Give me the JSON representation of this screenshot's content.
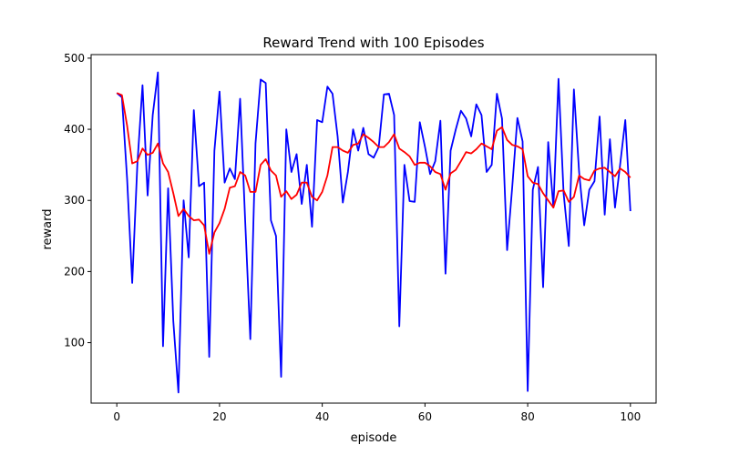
{
  "chart_data": {
    "type": "line",
    "title": "Reward Trend with 100 Episodes",
    "xlabel": "episode",
    "ylabel": "reward",
    "xlim": [
      -5,
      105
    ],
    "ylim": [
      15,
      505
    ],
    "xticks": [
      0,
      20,
      40,
      60,
      80,
      100
    ],
    "yticks": [
      100,
      200,
      300,
      400,
      500
    ],
    "grid": false,
    "series": [
      {
        "color": "#0000ff",
        "x": [
          0,
          1,
          2,
          3,
          4,
          5,
          6,
          7,
          8,
          9,
          10,
          11,
          12,
          13,
          14,
          15,
          16,
          17,
          18,
          19,
          20,
          21,
          22,
          23,
          24,
          25,
          26,
          27,
          28,
          29,
          30,
          31,
          32,
          33,
          34,
          35,
          36,
          37,
          38,
          39,
          40,
          41,
          42,
          43,
          44,
          45,
          46,
          47,
          48,
          49,
          50,
          51,
          52,
          53,
          54,
          55,
          56,
          57,
          58,
          59,
          60,
          61,
          62,
          63,
          64,
          65,
          66,
          67,
          68,
          69,
          70,
          71,
          72,
          73,
          74,
          75,
          76,
          77,
          78,
          79,
          80,
          81,
          82,
          83,
          84,
          85,
          86,
          87,
          88,
          89,
          90,
          91,
          92,
          93,
          94,
          95,
          96,
          97,
          98,
          99,
          100
        ],
        "values": [
          451,
          445,
          330,
          184,
          350,
          462,
          307,
          420,
          480,
          95,
          317,
          130,
          30,
          300,
          220,
          427,
          320,
          325,
          80,
          370,
          453,
          325,
          345,
          330,
          443,
          270,
          105,
          380,
          470,
          465,
          272,
          250,
          52,
          400,
          340,
          365,
          295,
          350,
          263,
          413,
          410,
          460,
          450,
          390,
          297,
          340,
          400,
          370,
          402,
          365,
          360,
          375,
          449,
          450,
          420,
          123,
          350,
          299,
          298,
          410,
          375,
          337,
          355,
          412,
          197,
          370,
          400,
          426,
          415,
          390,
          435,
          420,
          340,
          350,
          450,
          415,
          230,
          320,
          416,
          383,
          32,
          315,
          347,
          178,
          382,
          290,
          471,
          310,
          236,
          456,
          340,
          265,
          315,
          327,
          418,
          280,
          386,
          290,
          350,
          413,
          285
        ]
      },
      {
        "color": "#ff0000",
        "x": [
          0,
          1,
          2,
          3,
          4,
          5,
          6,
          7,
          8,
          9,
          10,
          11,
          12,
          13,
          14,
          15,
          16,
          17,
          18,
          19,
          20,
          21,
          22,
          23,
          24,
          25,
          26,
          27,
          28,
          29,
          30,
          31,
          32,
          33,
          34,
          35,
          36,
          37,
          38,
          39,
          40,
          41,
          42,
          43,
          44,
          45,
          46,
          47,
          48,
          49,
          50,
          51,
          52,
          53,
          54,
          55,
          56,
          57,
          58,
          59,
          60,
          61,
          62,
          63,
          64,
          65,
          66,
          67,
          68,
          69,
          70,
          71,
          72,
          73,
          74,
          75,
          76,
          77,
          78,
          79,
          80,
          81,
          82,
          83,
          84,
          85,
          86,
          87,
          88,
          89,
          90,
          91,
          92,
          93,
          94,
          95,
          96,
          97,
          98,
          99,
          100
        ],
        "values": [
          451,
          448,
          405,
          352,
          355,
          373,
          364,
          367,
          380,
          352,
          340,
          310,
          278,
          288,
          278,
          272,
          273,
          265,
          225,
          255,
          268,
          288,
          318,
          320,
          340,
          335,
          312,
          312,
          350,
          358,
          342,
          335,
          305,
          313,
          302,
          308,
          325,
          325,
          305,
          300,
          312,
          335,
          375,
          375,
          370,
          367,
          378,
          380,
          393,
          388,
          382,
          375,
          375,
          382,
          393,
          373,
          368,
          362,
          350,
          353,
          353,
          348,
          340,
          337,
          315,
          338,
          343,
          355,
          368,
          366,
          372,
          380,
          376,
          372,
          398,
          403,
          385,
          378,
          376,
          372,
          334,
          325,
          323,
          310,
          300,
          290,
          313,
          314,
          298,
          305,
          335,
          330,
          328,
          342,
          345,
          346,
          340,
          334,
          345,
          340,
          332
        ]
      }
    ]
  }
}
